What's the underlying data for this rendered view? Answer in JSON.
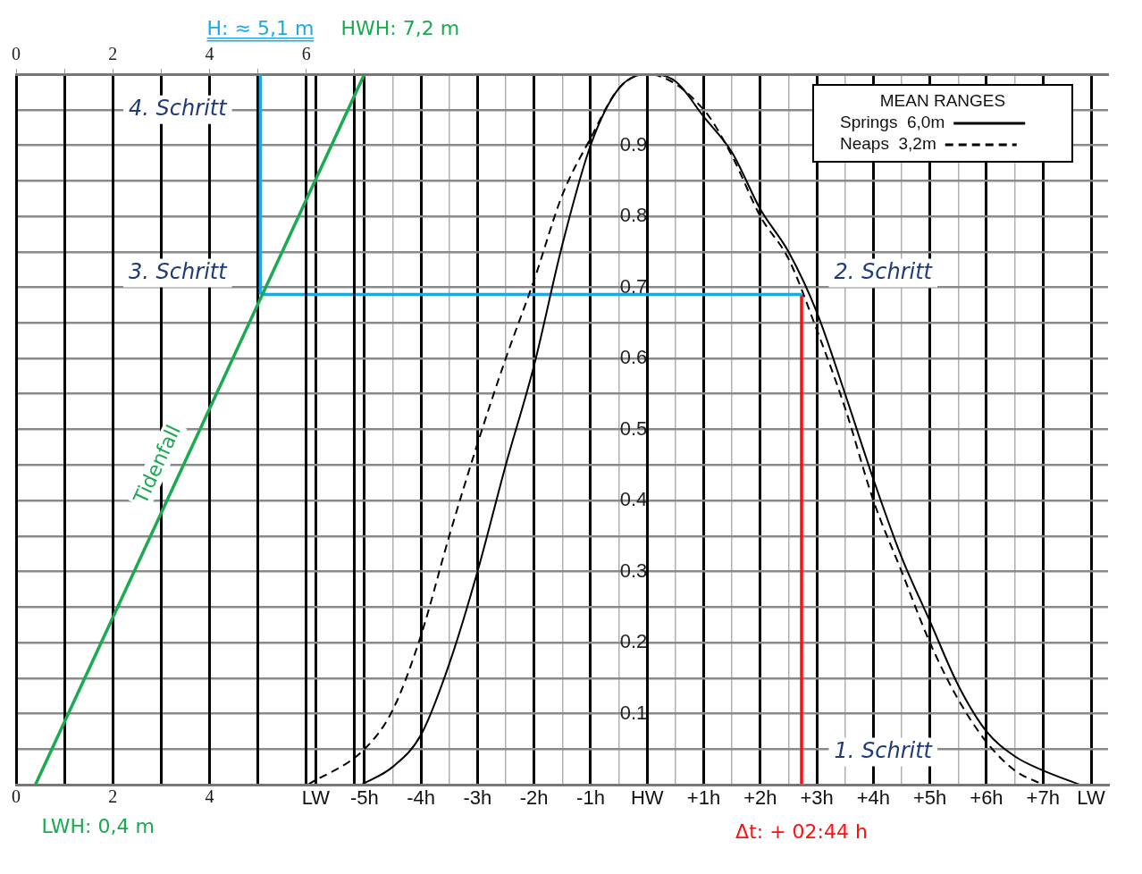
{
  "chart_data": [
    {
      "type": "line",
      "xlim": [
        0,
        22.57
      ],
      "xticks": [
        0,
        {
          "value": 1,
          "label": null
        },
        2,
        {
          "value": 3,
          "label": null
        },
        4,
        {
          "value": 5,
          "label": null
        },
        {
          "value": 6,
          "label": null
        },
        {
          "value": 7,
          "label": null
        }
      ],
      "x2lim": [
        0,
        22.57
      ],
      "x2ticks": [
        0,
        {
          "value": 1,
          "label": null
        },
        2,
        {
          "value": 3,
          "label": null
        },
        4,
        {
          "value": 5,
          "label": null
        },
        6,
        {
          "value": 7,
          "label": null
        }
      ],
      "ylim": [
        0,
        1
      ],
      "tick_labels": "x",
      "grid": "x",
      "marker": "none",
      "series": [
        {
          "name": "Tidenfall",
          "color": "#1aaa50",
          "x": [
            0.4,
            7.2
          ],
          "values": [
            0,
            1
          ]
        },
        {
          "color": "#1ea7e8",
          "x": [
            5.05,
            5.05
          ],
          "values": [
            0.69,
            1
          ]
        }
      ],
      "annotations": [
        "3. Schritt",
        "4. Schritt",
        "H: ≈ 5,1 m",
        "HWH: 7,2 m",
        "LWH: 0,4 m"
      ]
    },
    {
      "type": "line",
      "xlim": [
        -11.16,
        8.15
      ],
      "xticks": [
        {
          "value": -5.86,
          "label": "LW"
        },
        {
          "value": -5,
          "label": "-5h"
        },
        {
          "value": -4.5,
          "label": null
        },
        {
          "value": -4,
          "label": "-4h"
        },
        {
          "value": -3.5,
          "label": null
        },
        {
          "value": -3,
          "label": "-3h"
        },
        {
          "value": -2.5,
          "label": null
        },
        {
          "value": -2,
          "label": "-2h"
        },
        {
          "value": -1.5,
          "label": null
        },
        {
          "value": -1,
          "label": "-1h"
        },
        {
          "value": -0.5,
          "label": null
        },
        {
          "value": 0,
          "label": "HW"
        },
        {
          "value": 0.5,
          "label": null
        },
        {
          "value": 1,
          "label": "+1h"
        },
        {
          "value": 1.5,
          "label": null
        },
        {
          "value": 2,
          "label": "+2h"
        },
        {
          "value": 2.5,
          "label": null
        },
        {
          "value": 3,
          "label": "+3h"
        },
        {
          "value": 3.5,
          "label": null
        },
        {
          "value": 4,
          "label": "+4h"
        },
        {
          "value": 4.5,
          "label": null
        },
        {
          "value": 5,
          "label": "+5h"
        },
        {
          "value": 5.5,
          "label": null
        },
        {
          "value": 6,
          "label": "+6h"
        },
        {
          "value": 6.5,
          "label": null
        },
        {
          "value": 7,
          "label": "+7h"
        },
        {
          "value": 7.85,
          "label": "LW"
        }
      ],
      "ylim": [
        0,
        1
      ],
      "yticks": [
        {
          "value": 0.05,
          "label": null
        },
        0.1,
        {
          "value": 0.15,
          "label": null
        },
        0.2,
        {
          "value": 0.25,
          "label": null
        },
        0.3,
        {
          "value": 0.35,
          "label": null
        },
        0.4,
        {
          "value": 0.45,
          "label": null
        },
        0.5,
        {
          "value": 0.55,
          "label": null
        },
        0.6,
        {
          "value": 0.65,
          "label": null
        },
        0.7,
        {
          "value": 0.75,
          "label": null
        },
        0.8,
        {
          "value": 0.85,
          "label": null
        },
        0.9,
        {
          "value": 0.95,
          "label": null
        }
      ],
      "grid": true,
      "legend": "top right",
      "legend_title": "MEAN RANGES",
      "marker": "none",
      "series": [
        {
          "name": "Springs  6,0m",
          "color": "#000000",
          "line_style": "solid",
          "x": [
            -5.05,
            -4.5,
            -4,
            -3.5,
            -3,
            -2.5,
            -2,
            -1.5,
            -1,
            -0.5,
            0,
            0.5,
            1,
            1.5,
            2,
            2.5,
            3,
            3.5,
            4,
            4.5,
            5,
            5.5,
            6,
            6.5,
            7,
            7.65
          ],
          "values": [
            0,
            0.025,
            0.07,
            0.17,
            0.3,
            0.45,
            0.59,
            0.76,
            0.9,
            0.98,
            1,
            0.99,
            0.94,
            0.89,
            0.81,
            0.75,
            0.665,
            0.55,
            0.43,
            0.32,
            0.23,
            0.14,
            0.075,
            0.04,
            0.02,
            0
          ]
        },
        {
          "name": "Neaps  3,2m",
          "color": "#000000",
          "line_style": "dashed",
          "x": [
            -6,
            -5,
            -4.5,
            -4,
            -3.5,
            -3,
            -2.5,
            -2,
            -1.5,
            -1,
            -0.5,
            0,
            1,
            1.5,
            2,
            2.5,
            3,
            3.5,
            4,
            4.5,
            5,
            5.5,
            6,
            6.5,
            7
          ],
          "values": [
            0,
            0.05,
            0.105,
            0.21,
            0.35,
            0.48,
            0.6,
            0.71,
            0.83,
            0.91,
            0.98,
            1,
            0.95,
            0.885,
            0.8,
            0.74,
            0.64,
            0.53,
            0.4,
            0.3,
            0.2,
            0.12,
            0.06,
            0.02,
            0
          ]
        },
        {
          "color": "#1ea7e8",
          "x": [
            -6.84,
            2.73
          ],
          "values": [
            0.69,
            0.69
          ]
        },
        {
          "color": "#ff1010",
          "x": [
            2.73,
            2.73
          ],
          "values": [
            0,
            0.69
          ]
        }
      ],
      "annotations": [
        "1. Schritt",
        "2. Schritt",
        "Δt: + 02:44 h"
      ]
    }
  ]
}
